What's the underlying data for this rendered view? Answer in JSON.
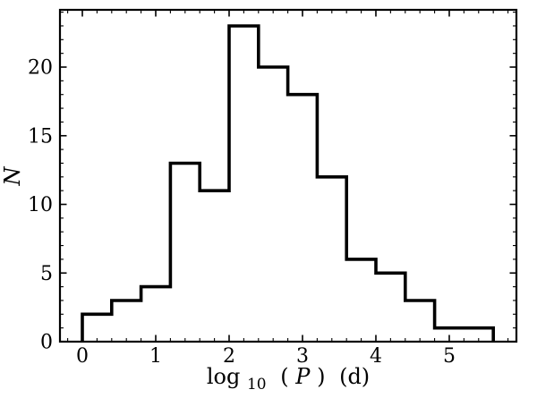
{
  "figure": {
    "background": "#ffffff",
    "stroke_color": "#000000"
  },
  "chart_data": {
    "type": "histogram-step",
    "title": "",
    "xlabel": "log10 (P) (d)",
    "xlabel_parts": {
      "prefix": "log",
      "subscript": "10",
      "open": "(",
      "variable": "P",
      "close": ")",
      "unit": "(d)"
    },
    "ylabel": "N",
    "bin_edges": [
      0.0,
      0.4,
      0.8,
      1.2,
      1.6,
      2.0,
      2.4,
      2.8,
      3.2,
      3.6,
      4.0,
      4.4,
      4.8,
      5.2,
      5.6
    ],
    "counts": [
      2,
      3,
      4,
      13,
      11,
      23,
      20,
      18,
      12,
      6,
      5,
      3,
      1,
      1
    ],
    "xlim": [
      -0.305,
      5.915
    ],
    "ylim": [
      0,
      24.17
    ],
    "x_major_ticks": [
      0,
      1,
      2,
      3,
      4,
      5
    ],
    "x_tick_labels": [
      "0",
      "1",
      "2",
      "3",
      "4",
      "5"
    ],
    "x_minor_step": 0.2,
    "y_major_ticks": [
      0,
      5,
      10,
      15,
      20
    ],
    "y_tick_labels": [
      "0",
      "5",
      "10",
      "15",
      "20"
    ],
    "y_minor_step": 1,
    "tick_direction": "in",
    "ticks_on_all_sides": true,
    "grid": false,
    "legend": null,
    "line_color": "#000000"
  }
}
